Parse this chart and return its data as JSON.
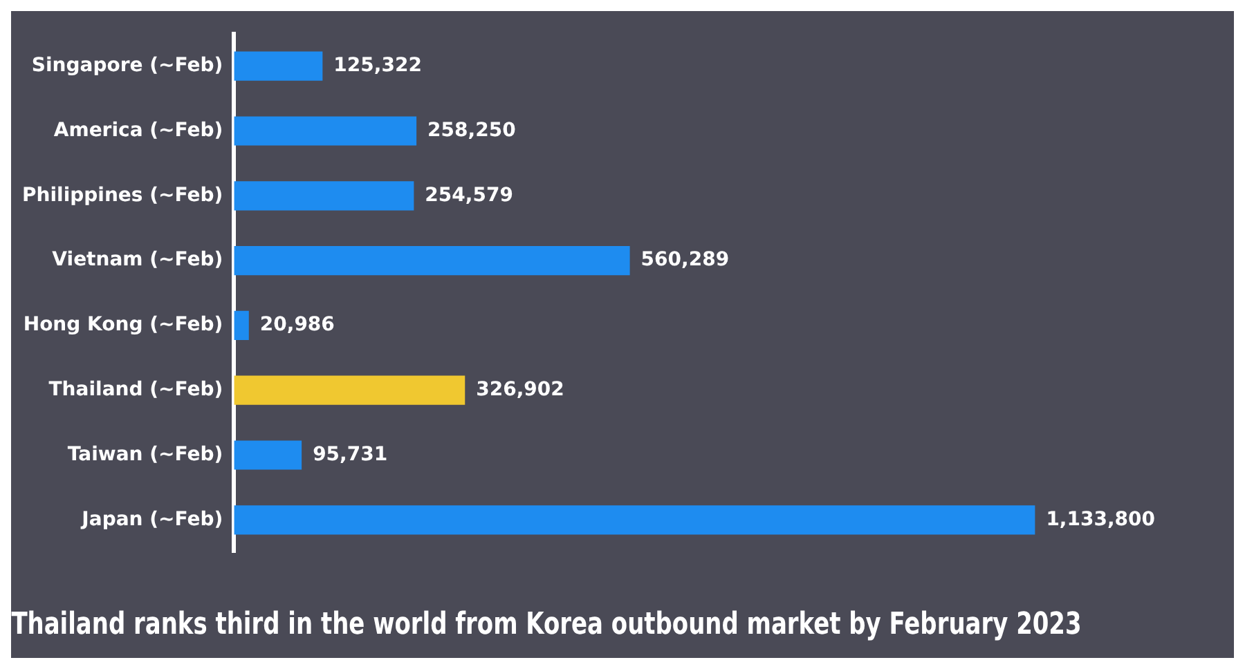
{
  "chart_data": {
    "type": "bar",
    "orientation": "horizontal",
    "title": "Thailand ranks third in the world from Korea outbound market by February 2023",
    "categories": [
      "Singapore (~Feb)",
      "America (~Feb)",
      "Philippines (~Feb)",
      "Vietnam (~Feb)",
      "Hong Kong (~Feb)",
      "Thailand (~Feb)",
      "Taiwan (~Feb)",
      "Japan (~Feb)"
    ],
    "values": [
      125322,
      258250,
      254579,
      560289,
      20986,
      326902,
      95731,
      1133800
    ],
    "colors": [
      "#1e8cf0",
      "#1e8cf0",
      "#1e8cf0",
      "#1e8cf0",
      "#1e8cf0",
      "#f0c830",
      "#1e8cf0",
      "#1e8cf0"
    ],
    "value_labels": [
      "125,322",
      "258,250",
      "254,579",
      "560,289",
      "20,986",
      "326,902",
      "95,731",
      "1,133,800"
    ],
    "grid": false,
    "legend": false,
    "tick_labels": "y"
  }
}
